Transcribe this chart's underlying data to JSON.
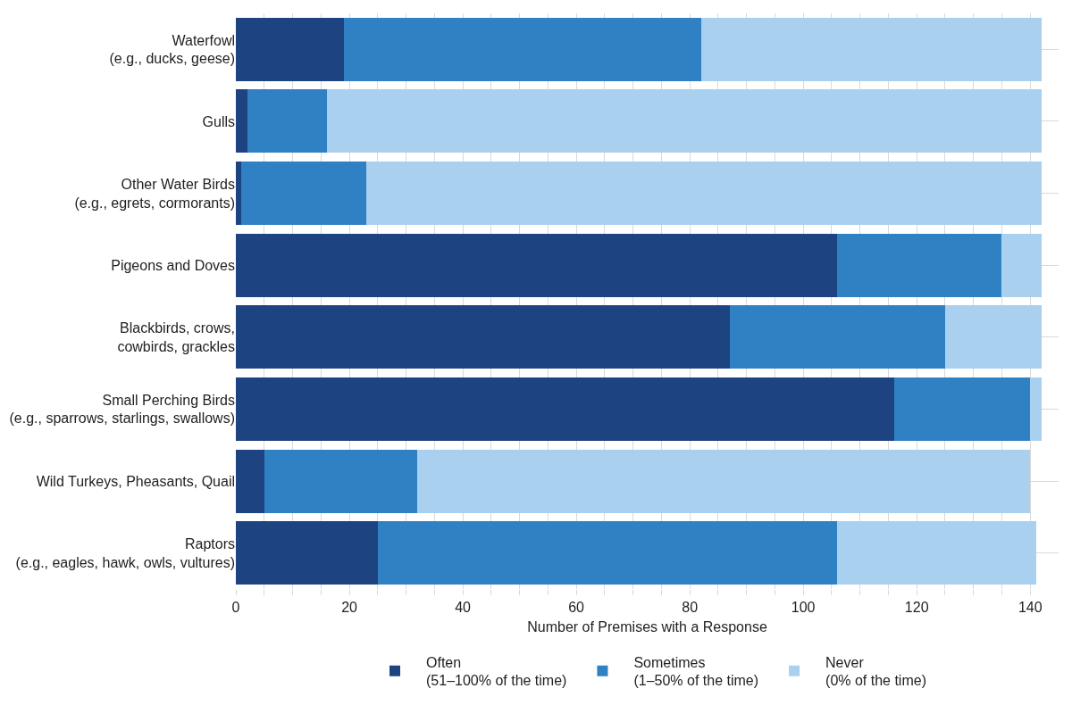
{
  "chart_data": {
    "type": "bar",
    "orientation": "horizontal",
    "stacked": true,
    "xlabel": "Number of Premises with a Response",
    "categories": [
      "Waterfowl\n(e.g., ducks, geese)",
      "Gulls",
      "Other Water Birds\n(e.g., egrets, cormorants)",
      "Pigeons and Doves",
      "Blackbirds, crows,\ncowbirds, grackles",
      "Small Perching Birds\n(e.g., sparrows, starlings, swallows)",
      "Wild Turkeys, Pheasants, Quail",
      "Raptors\n(e.g., eagles, hawk, owls, vultures)"
    ],
    "series": [
      {
        "name": "Often\n(51–100% of the time)",
        "color": "#1d4380",
        "values": [
          19,
          2,
          1,
          106,
          87,
          116,
          5,
          25
        ]
      },
      {
        "name": "Sometimes\n(1–50% of the time)",
        "color": "#3080c4",
        "values": [
          63,
          14,
          22,
          29,
          38,
          24,
          27,
          81
        ]
      },
      {
        "name": "Never\n(0% of the time)",
        "color": "#aad0ef",
        "values": [
          60,
          126,
          119,
          7,
          17,
          2,
          108,
          35
        ]
      }
    ],
    "xlim": [
      0,
      145
    ],
    "xticks": [
      0,
      {
        "value": 5,
        "label": null
      },
      {
        "value": 10,
        "label": null
      },
      {
        "value": 15,
        "label": null
      },
      20,
      {
        "value": 25,
        "label": null
      },
      {
        "value": 30,
        "label": null
      },
      {
        "value": 35,
        "label": null
      },
      40,
      {
        "value": 45,
        "label": null
      },
      {
        "value": 50,
        "label": null
      },
      {
        "value": 55,
        "label": null
      },
      60,
      {
        "value": 65,
        "label": null
      },
      {
        "value": 70,
        "label": null
      },
      {
        "value": 75,
        "label": null
      },
      80,
      {
        "value": 85,
        "label": null
      },
      {
        "value": 90,
        "label": null
      },
      {
        "value": 95,
        "label": null
      },
      100,
      {
        "value": 105,
        "label": null
      },
      {
        "value": 110,
        "label": null
      },
      {
        "value": 115,
        "label": null
      },
      120,
      {
        "value": 125,
        "label": null
      },
      {
        "value": 130,
        "label": null
      },
      {
        "value": 135,
        "label": null
      },
      140
    ],
    "grid": true,
    "legend": "bottom"
  }
}
